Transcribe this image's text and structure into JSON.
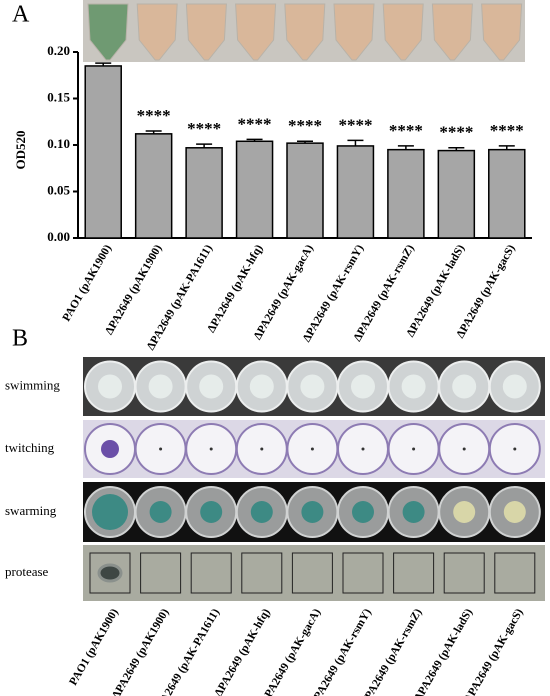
{
  "chart_data": {
    "type": "bar",
    "y_label": "OD520",
    "categories": [
      "PAO1 (pAK1900)",
      "ΔPA2649 (pAK1900)",
      "ΔPA2649 (pAK-PA1611)",
      "ΔPA2649 (pAK-hfq)",
      "ΔPA2649 (pAK-gacA)",
      "ΔPA2649 (pAK-rsmY)",
      "ΔPA2649 (pAK-rsmZ)",
      "ΔPA2649 (pAK-ladS)",
      "ΔPA2649 (pAK-gacS)"
    ],
    "values": [
      0.185,
      0.112,
      0.097,
      0.104,
      0.102,
      0.099,
      0.095,
      0.094,
      0.095
    ],
    "errors": [
      0.003,
      0.003,
      0.004,
      0.002,
      0.002,
      0.006,
      0.004,
      0.003,
      0.004
    ],
    "annotations": [
      null,
      "****",
      "****",
      "****",
      "****",
      "****",
      "****",
      "****",
      "****"
    ],
    "color": "#a6a6a6",
    "ylim": [
      0,
      0.2
    ],
    "yticks": [
      {
        "value": 0,
        "label": "0.00"
      },
      {
        "value": 0.05,
        "label": "0.05"
      },
      {
        "value": 0.1,
        "label": "0.10"
      },
      {
        "value": 0.15,
        "label": "0.15"
      },
      {
        "value": 0.2,
        "label": "0.20"
      }
    ]
  },
  "panel_labels": [
    "A",
    "B"
  ],
  "assays": [
    "swimming",
    "twitching",
    "swarming",
    "protease"
  ]
}
